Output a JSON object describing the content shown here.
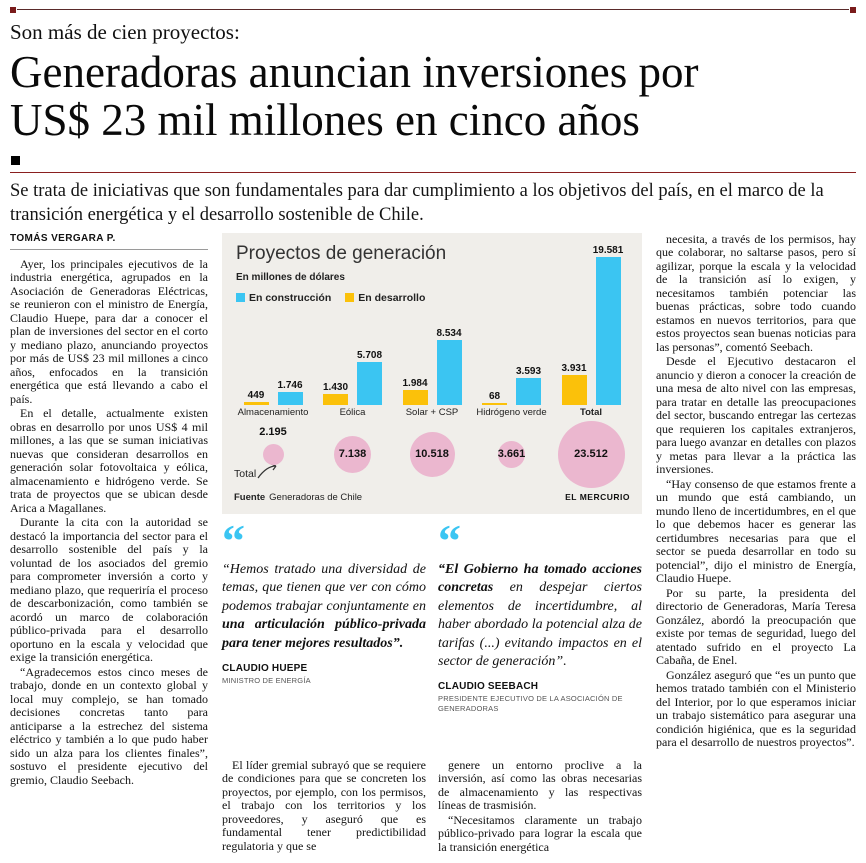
{
  "page": {
    "kicker": "Son más de cien proyectos:",
    "headline_lines": [
      "Generadoras anuncian inversiones por",
      "US$ 23 mil millones en cinco años"
    ],
    "deck": "Se trata de iniciativas que son fundamentales para dar cumplimiento a los objetivos del país, en el marco de la transición energética y el desarrollo sostenible de Chile.",
    "byline": "TOMÁS VERGARA P.",
    "accent_color": "#8a1f1f"
  },
  "article": {
    "col1": [
      "Ayer, los principales ejecutivos de la industria energética, agrupados en la Asociación de Generadoras Eléctricas, se reunieron con el ministro de Energía, Claudio Huepe, para dar a conocer el plan de inversiones del sector en el corto y mediano plazo, anunciando proyectos por más de US$ 23 mil millones a cinco años, enfocados en la transición energética que está llevando a cabo el país.",
      "En el detalle, actualmente existen obras en desarrollo por unos US$ 4 mil millones, a las que se suman iniciativas nuevas que consideran desarrollos en generación solar fotovoltaica y eólica, almacenamiento e hidrógeno verde. Se trata de proyectos que se ubican desde Arica a Magallanes.",
      "Durante la cita con la autoridad se destacó la importancia del sector para el desarrollo sostenible del país y la voluntad de los asociados del gremio para comprometer inversión a corto y mediano plazo, que requeriría el proceso de descarbonización, como también se acordó un marco de colaboración público-privada para el desarrollo oportuno en la escala y velocidad que exige la transición energética.",
      "“Agradecemos estos cinco meses de trabajo, donde en un contexto global y local muy complejo, se han tomado decisiones concretas tanto para anticiparse a la estrechez del sistema eléctrico y también a lo que pudo haber sido un alza para los clientes finales”, sostuvo el presidente ejecutivo del gremio, Claudio Seebach."
    ],
    "col2": [
      "El líder gremial subrayó que se requiere de condiciones para que se concreten los proyectos, por ejemplo, con los permisos, el trabajo con los territorios y los proveedores, y aseguró que es fundamental tener predictibilidad regulatoria y que se"
    ],
    "col3": [
      "genere un entorno proclive a la inversión, así como las obras necesarias de almacenamiento y las respectivas líneas de trasmisión.",
      "“Necesitamos claramente un trabajo público-privado para lograr la escala que la transición energética"
    ],
    "col4": [
      "necesita, a través de los permisos, hay que colaborar, no saltarse pasos, pero sí agilizar, porque la escala y la velocidad de la transición así lo exigen, y necesitamos también potenciar las buenas prácticas, sobre todo cuando estamos en nuevos territorios, para que estos proyectos sean buenas noticias para las personas”, comentó Seebach.",
      "Desde el Ejecutivo destacaron el anuncio y dieron a conocer la creación de una mesa de alto nivel con las empresas, para tratar en detalle las preocupaciones del sector, buscando entregar las certezas que requieren los capitales extranjeros, para luego avanzar en detalles con plazos y metas para llevar a la práctica las inversiones.",
      "“Hay consenso de que estamos frente a un mundo que está cambiando, un mundo lleno de incertidumbres, en el que lo que debemos hacer es generar las certidumbres necesarias para que el sector se pueda desarrollar en todo su potencial”, dijo el ministro de Energía, Claudio Huepe.",
      "Por su parte, la presidenta del directorio de Generadoras, María Teresa González, abordó la preocupación que existe por temas de seguridad, luego del atentado sufrido en el proyecto La Cabaña, de Enel.",
      "González aseguró que “es un punto que hemos tratado también con el Ministerio del Interior, por lo que esperamos iniciar un trabajo sistemático para asegurar una condición higiénica, que es la seguridad para el desarrollo de nuestros proyectos”."
    ]
  },
  "quotes": [
    {
      "segments": [
        {
          "text": "“Hemos tratado una diversidad de temas, que tienen que ver con cómo podemos trabajar conjuntamente en ",
          "bold": false
        },
        {
          "text": "una articulación público-privada para tener mejores resultados”.",
          "bold": true
        }
      ],
      "author": "CLAUDIO HUEPE",
      "role": "MINISTRO DE ENERGÍA"
    },
    {
      "segments": [
        {
          "text": "“El Gobierno ha tomado acciones concretas ",
          "bold": true
        },
        {
          "text": "en despejar ciertos elementos de incertidumbre, al haber abordado la potencial alza de tarifas (...) evitando impactos en el sector de generación”.",
          "bold": false
        }
      ],
      "author": "CLAUDIO SEEBACH",
      "role": "PRESIDENTE EJECUTIVO DE LA ASOCIACIÓN DE GENERADORAS"
    }
  ],
  "chart_data": {
    "type": "bar",
    "title": "Proyectos de generación",
    "subtitle": "En millones de dólares",
    "categories": [
      "Almacenamiento",
      "Eólica",
      "Solar + CSP",
      "Hidrógeno verde",
      "Total"
    ],
    "series": [
      {
        "name": "En desarrollo",
        "color": "#fbc10a",
        "values": [
          449,
          1430,
          1984,
          68,
          3931
        ],
        "labels": [
          "449",
          "1.430",
          "1.984",
          "68",
          "3.931"
        ]
      },
      {
        "name": "En construcción",
        "color": "#3bc5f2",
        "values": [
          1746,
          5708,
          8534,
          3593,
          19581
        ],
        "labels": [
          "1.746",
          "5.708",
          "8.534",
          "3.593",
          "19.581"
        ]
      }
    ],
    "legend_order": [
      "En construcción",
      "En desarrollo"
    ],
    "totals": {
      "label": "Total",
      "values": [
        2195,
        7138,
        10518,
        3661,
        23512
      ],
      "labels": [
        "2.195",
        "7.138",
        "10.518",
        "3.661",
        "23.512"
      ],
      "color": "#ebb7cf"
    },
    "ylim": [
      0,
      19581
    ],
    "grid": false,
    "legend_position": "top-left",
    "source_label": "Fuente",
    "source": "Generadoras de Chile",
    "credit": "EL MERCURIO"
  }
}
